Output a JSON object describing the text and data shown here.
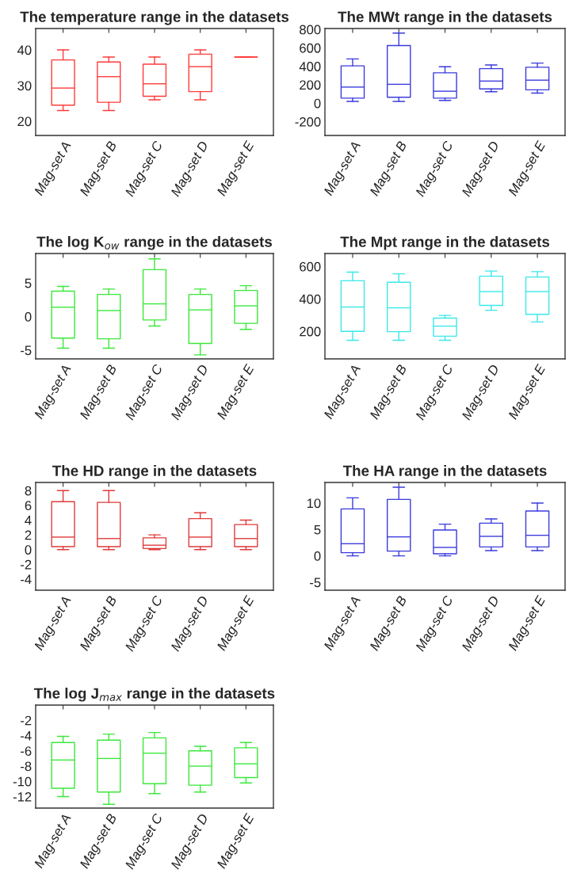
{
  "chart_data": [
    {
      "type": "box",
      "title": "The temperature range in the datasets",
      "categories": [
        "Mag-set A",
        "Mag-set B",
        "Mag-set C",
        "Mag-set D",
        "Mag-set E"
      ],
      "ylim": [
        16,
        46
      ],
      "yticks": [
        20,
        30,
        40
      ],
      "grid": false,
      "series": [
        {
          "color": "#ff3b3b",
          "boxes": [
            {
              "low": 23,
              "q1": 24.5,
              "median": 29.3,
              "q3": 37.2,
              "high": 40
            },
            {
              "low": 23,
              "q1": 25.3,
              "median": 32.5,
              "q3": 36.6,
              "high": 38
            },
            {
              "low": 26,
              "q1": 27,
              "median": 30.5,
              "q3": 36,
              "high": 38
            },
            {
              "low": 26,
              "q1": 28.3,
              "median": 35.3,
              "q3": 38.8,
              "high": 40
            },
            {
              "low": 38,
              "q1": 38,
              "median": 38,
              "q3": 38,
              "high": 38
            }
          ]
        }
      ]
    },
    {
      "type": "box",
      "title": "The MWt range in the datasets",
      "categories": [
        "Mag-set A",
        "Mag-set B",
        "Mag-set C",
        "Mag-set D",
        "Mag-set E"
      ],
      "ylim": [
        -350,
        810
      ],
      "yticks": [
        -200,
        0,
        200,
        400,
        600,
        800
      ],
      "grid": false,
      "series": [
        {
          "color": "#3b3bdd",
          "boxes": [
            {
              "low": 20,
              "q1": 55,
              "median": 175,
              "q3": 405,
              "high": 480
            },
            {
              "low": 20,
              "q1": 65,
              "median": 205,
              "q3": 625,
              "high": 760
            },
            {
              "low": 30,
              "q1": 55,
              "median": 130,
              "q3": 330,
              "high": 395
            },
            {
              "low": 125,
              "q1": 155,
              "median": 240,
              "q3": 375,
              "high": 415
            },
            {
              "low": 110,
              "q1": 145,
              "median": 250,
              "q3": 390,
              "high": 435
            }
          ]
        }
      ]
    },
    {
      "type": "box",
      "title": "The log K$_{ow}$ range in the datasets",
      "categories": [
        "Mag-set A",
        "Mag-set B",
        "Mag-set C",
        "Mag-set D",
        "Mag-set E"
      ],
      "ylim": [
        -6.3,
        9.4
      ],
      "yticks": [
        -5,
        0,
        5
      ],
      "grid": false,
      "series": [
        {
          "color": "#3be83b",
          "boxes": [
            {
              "low": -4.7,
              "q1": -3.2,
              "median": 1.4,
              "q3": 3.8,
              "high": 4.5
            },
            {
              "low": -4.7,
              "q1": -3.3,
              "median": 0.9,
              "q3": 3.3,
              "high": 4.1
            },
            {
              "low": -1.4,
              "q1": -0.5,
              "median": 1.9,
              "q3": 7.0,
              "high": 8.6
            },
            {
              "low": -5.7,
              "q1": -4.0,
              "median": 1.0,
              "q3": 3.3,
              "high": 4.1
            },
            {
              "low": -1.9,
              "q1": -1.0,
              "median": 1.6,
              "q3": 3.9,
              "high": 4.6
            }
          ]
        }
      ]
    },
    {
      "type": "box",
      "title": "The Mpt range in the datasets",
      "categories": [
        "Mag-set A",
        "Mag-set B",
        "Mag-set C",
        "Mag-set D",
        "Mag-set E"
      ],
      "ylim": [
        30,
        680
      ],
      "yticks": [
        200,
        400,
        600
      ],
      "grid": false,
      "series": [
        {
          "color": "#3be8e8",
          "boxes": [
            {
              "low": 145,
              "q1": 200,
              "median": 350,
              "q3": 512,
              "high": 565
            },
            {
              "low": 145,
              "q1": 198,
              "median": 345,
              "q3": 503,
              "high": 555
            },
            {
              "low": 145,
              "q1": 170,
              "median": 232,
              "q3": 282,
              "high": 298
            },
            {
              "low": 330,
              "q1": 360,
              "median": 445,
              "q3": 540,
              "high": 572
            },
            {
              "low": 258,
              "q1": 305,
              "median": 445,
              "q3": 535,
              "high": 568
            }
          ]
        }
      ]
    },
    {
      "type": "box",
      "title": "The HD range in the datasets",
      "categories": [
        "Mag-set A",
        "Mag-set B",
        "Mag-set C",
        "Mag-set D",
        "Mag-set E"
      ],
      "ylim": [
        -5.5,
        9.1
      ],
      "yticks": [
        -4,
        -2,
        0,
        2,
        4,
        6,
        8
      ],
      "grid": false,
      "series": [
        {
          "color": "#e03b3b",
          "boxes": [
            {
              "low": 0,
              "q1": 0.4,
              "median": 1.7,
              "q3": 6.5,
              "high": 8
            },
            {
              "low": 0,
              "q1": 0.4,
              "median": 1.5,
              "q3": 6.4,
              "high": 8
            },
            {
              "low": 0,
              "q1": 0.15,
              "median": 0.6,
              "q3": 1.6,
              "high": 2
            },
            {
              "low": 0,
              "q1": 0.4,
              "median": 1.7,
              "q3": 4.2,
              "high": 5
            },
            {
              "low": 0,
              "q1": 0.4,
              "median": 1.5,
              "q3": 3.4,
              "high": 4
            }
          ]
        }
      ]
    },
    {
      "type": "box",
      "title": "The HA range in the datasets",
      "categories": [
        "Mag-set A",
        "Mag-set B",
        "Mag-set C",
        "Mag-set D",
        "Mag-set E"
      ],
      "ylim": [
        -6.5,
        13.9
      ],
      "yticks": [
        -5,
        0,
        5,
        10
      ],
      "grid": false,
      "series": [
        {
          "color": "#3b3bdd",
          "boxes": [
            {
              "low": 0,
              "q1": 0.6,
              "median": 2.3,
              "q3": 8.9,
              "high": 11
            },
            {
              "low": 0,
              "q1": 0.9,
              "median": 3.6,
              "q3": 10.7,
              "high": 13
            },
            {
              "low": 0,
              "q1": 0.4,
              "median": 1.6,
              "q3": 4.9,
              "high": 6
            },
            {
              "low": 1,
              "q1": 1.7,
              "median": 3.7,
              "q3": 6.2,
              "high": 7
            },
            {
              "low": 1,
              "q1": 1.7,
              "median": 3.9,
              "q3": 8.5,
              "high": 10
            }
          ]
        }
      ]
    },
    {
      "type": "box",
      "title": "The log J$_{max}$ range in the datasets",
      "categories": [
        "Mag-set A",
        "Mag-set B",
        "Mag-set C",
        "Mag-set D",
        "Mag-set E"
      ],
      "ylim": [
        -13.5,
        0
      ],
      "yticks": [
        -12,
        -10,
        -8,
        -6,
        -4,
        -2
      ],
      "grid": false,
      "series": [
        {
          "color": "#3be83b",
          "boxes": [
            {
              "low": -12,
              "q1": -10.9,
              "median": -7.2,
              "q3": -4.9,
              "high": -4.1
            },
            {
              "low": -13,
              "q1": -11.4,
              "median": -7.0,
              "q3": -4.6,
              "high": -3.8
            },
            {
              "low": -11.6,
              "q1": -10.3,
              "median": -6.3,
              "q3": -4.3,
              "high": -3.6
            },
            {
              "low": -11.4,
              "q1": -10.5,
              "median": -8.0,
              "q3": -6.0,
              "high": -5.4
            },
            {
              "low": -10.2,
              "q1": -9.5,
              "median": -7.7,
              "q3": -5.6,
              "high": -4.9
            }
          ]
        }
      ]
    }
  ]
}
